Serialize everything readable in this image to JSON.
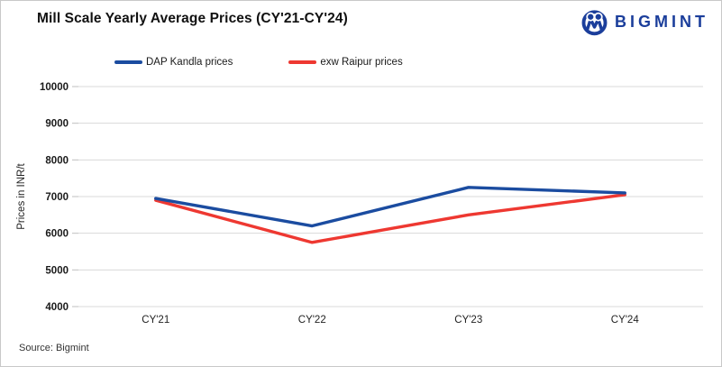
{
  "header": {
    "title": "Mill Scale Yearly Average Prices (CY'21-CY'24)",
    "brand": {
      "name": "BIGMINT",
      "color": "#1b3e9b"
    }
  },
  "chart_data": {
    "type": "line",
    "title": "Mill Scale Yearly Average Prices (CY'21-CY'24)",
    "categories": [
      "CY'21",
      "CY'22",
      "CY'23",
      "CY'24"
    ],
    "series": [
      {
        "name": "DAP Kandla prices",
        "color": "#1b4ca0",
        "values": [
          6950,
          6200,
          7250,
          7100
        ]
      },
      {
        "name": "exw Raipur prices",
        "color": "#ee3831",
        "values": [
          6900,
          5750,
          6500,
          7050
        ]
      }
    ],
    "xlabel": "",
    "ylabel": "Prices in INR/t",
    "ylim": [
      4000,
      10000
    ],
    "yticks": [
      10000,
      9000,
      8000,
      7000,
      6000,
      5000,
      4000
    ],
    "grid": true,
    "grid_color": "#d9d9d9",
    "legend_position": "top"
  },
  "footer": {
    "source": "Source: Bigmint"
  }
}
